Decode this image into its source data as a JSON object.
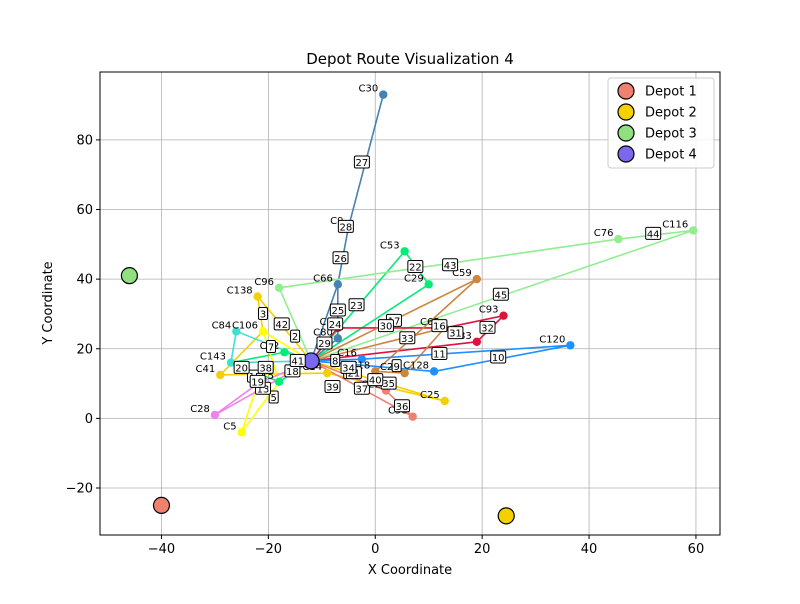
{
  "chart_data": {
    "type": "scatter",
    "title": "Depot Route Visualization 4",
    "xlabel": "X Coordinate",
    "ylabel": "Y Coordinate",
    "xlim": [
      -51.5,
      64.5
    ],
    "ylim": [
      -33.5,
      99.5
    ],
    "x_ticks": [
      -40,
      -20,
      0,
      20,
      40,
      60
    ],
    "y_ticks": [
      -20,
      0,
      20,
      40,
      60,
      80
    ],
    "grid": true,
    "legend_position": "top-right",
    "depots": [
      {
        "name": "Depot 1",
        "x": -40,
        "y": -25,
        "color": "#f08070"
      },
      {
        "name": "Depot 2",
        "x": 24.5,
        "y": -28,
        "color": "#f5d000"
      },
      {
        "name": "Depot 3",
        "x": -46,
        "y": 41,
        "color": "#90e080"
      },
      {
        "name": "Depot 4",
        "x": -12,
        "y": 16.5,
        "color": "#7b68ee"
      }
    ],
    "customers": [
      {
        "label": "C30",
        "x": 1.5,
        "y": 93,
        "color": "#4682b4"
      },
      {
        "label": "C9",
        "x": -5,
        "y": 55,
        "color": "#4682b4"
      },
      {
        "label": "C53",
        "x": 5.5,
        "y": 48,
        "color": "#00ee76"
      },
      {
        "label": "C66",
        "x": -7,
        "y": 38.5,
        "color": "#4682b4"
      },
      {
        "label": "C29",
        "x": 10,
        "y": 38.5,
        "color": "#00ee76"
      },
      {
        "label": "C59",
        "x": 19,
        "y": 40,
        "color": "#cd853f"
      },
      {
        "label": "C76",
        "x": 45.5,
        "y": 51.5,
        "color": "#90ee90"
      },
      {
        "label": "C116",
        "x": 59.5,
        "y": 54,
        "color": "#90ee90"
      },
      {
        "label": "C96",
        "x": -18,
        "y": 37.5,
        "color": "#90ee90"
      },
      {
        "label": "C138",
        "x": -22,
        "y": 35,
        "color": "#f5d000"
      },
      {
        "label": "C84",
        "x": -26,
        "y": 25,
        "color": "#40e0d0"
      },
      {
        "label": "C106",
        "x": -21,
        "y": 25,
        "color": "#ffff00"
      },
      {
        "label": "C93",
        "x": 24,
        "y": 29.5,
        "color": "#dc143c"
      },
      {
        "label": "C65",
        "x": 13,
        "y": 26,
        "color": "#cd853f"
      },
      {
        "label": "C83",
        "x": 19,
        "y": 22,
        "color": "#dc143c"
      },
      {
        "label": "C120",
        "x": 36.5,
        "y": 21,
        "color": "#1e90ff"
      },
      {
        "label": "C1",
        "x": -7,
        "y": 26,
        "color": "#dc143c"
      },
      {
        "label": "C80",
        "x": -7,
        "y": 23,
        "color": "#4682b4"
      },
      {
        "label": "C92",
        "x": -17,
        "y": 19,
        "color": "#00ee76"
      },
      {
        "label": "C143",
        "x": -27,
        "y": 16,
        "color": "#40e0d0"
      },
      {
        "label": "C41",
        "x": -29,
        "y": 12.5,
        "color": "#f5d000"
      },
      {
        "label": "C16",
        "x": -2.5,
        "y": 17,
        "color": "#1e90ff"
      },
      {
        "label": "C128",
        "x": 11,
        "y": 13.5,
        "color": "#1e90ff"
      },
      {
        "label": "C18",
        "x": 0,
        "y": 13.5,
        "color": "#cd853f"
      },
      {
        "label": "C24",
        "x": 5.5,
        "y": 13,
        "color": "#cd853f"
      },
      {
        "label": "C22",
        "x": 2,
        "y": 8,
        "color": "#f08070"
      },
      {
        "label": "C25",
        "x": 13,
        "y": 5,
        "color": "#f5d000"
      },
      {
        "label": "C58",
        "x": 7,
        "y": 0.5,
        "color": "#f08070"
      },
      {
        "label": "C14",
        "x": -9,
        "y": 13,
        "color": "#f5d000"
      },
      {
        "label": "C28",
        "x": -30,
        "y": 1,
        "color": "#ee82ee"
      },
      {
        "label": "C5",
        "x": -25,
        "y": -4,
        "color": "#ffff00"
      },
      {
        "label": "C15",
        "x": -18,
        "y": 10.5,
        "color": "#00ee76"
      }
    ],
    "routes": [
      {
        "color": "#4682b4",
        "points": [
          [
            -12,
            16.5
          ],
          [
            -7,
            23
          ],
          [
            -7,
            38.5
          ],
          [
            -5,
            55
          ],
          [
            1.5,
            93
          ],
          [
            -5,
            55
          ],
          [
            -7,
            38.5
          ],
          [
            -12,
            16.5
          ]
        ]
      },
      {
        "color": "#00ee76",
        "points": [
          [
            -12,
            16.5
          ],
          [
            -17,
            19
          ],
          [
            -27,
            16
          ],
          [
            -18,
            10.5
          ],
          [
            -12,
            16.5
          ]
        ]
      },
      {
        "color": "#00ee76",
        "points": [
          [
            -12,
            16.5
          ],
          [
            10,
            38.5
          ],
          [
            5.5,
            48
          ],
          [
            -12,
            16.5
          ]
        ]
      },
      {
        "color": "#90ee90",
        "points": [
          [
            -12,
            16.5
          ],
          [
            -18,
            37.5
          ],
          [
            45.5,
            51.5
          ],
          [
            59.5,
            54
          ],
          [
            -12,
            16.5
          ]
        ]
      },
      {
        "color": "#f5d000",
        "points": [
          [
            -12,
            16.5
          ],
          [
            -22,
            35
          ],
          [
            -21,
            25
          ],
          [
            -29,
            12.5
          ],
          [
            -9,
            13
          ],
          [
            13,
            5
          ],
          [
            -12,
            16.5
          ]
        ]
      },
      {
        "color": "#ffff00",
        "points": [
          [
            -12,
            16.5
          ],
          [
            -21,
            25
          ],
          [
            -18,
            10.5
          ],
          [
            -25,
            -4
          ],
          [
            -22,
            10
          ],
          [
            -12,
            16.5
          ]
        ]
      },
      {
        "color": "#40e0d0",
        "points": [
          [
            -12,
            16.5
          ],
          [
            -26,
            25
          ],
          [
            -27,
            16
          ],
          [
            -12,
            16.5
          ]
        ]
      },
      {
        "color": "#dc143c",
        "points": [
          [
            -12,
            16.5
          ],
          [
            -7,
            26
          ],
          [
            13,
            26
          ],
          [
            24,
            29.5
          ],
          [
            19,
            22
          ],
          [
            -12,
            16.5
          ]
        ]
      },
      {
        "color": "#cd853f",
        "points": [
          [
            -12,
            16.5
          ],
          [
            19,
            40
          ],
          [
            0,
            13.5
          ],
          [
            5.5,
            13
          ],
          [
            13,
            26
          ],
          [
            -12,
            16.5
          ]
        ]
      },
      {
        "color": "#1e90ff",
        "points": [
          [
            -12,
            16.5
          ],
          [
            -2.5,
            17
          ],
          [
            36.5,
            21
          ],
          [
            11,
            13.5
          ],
          [
            -12,
            16.5
          ]
        ]
      },
      {
        "color": "#f08070",
        "points": [
          [
            -12,
            16.5
          ],
          [
            2,
            8
          ],
          [
            7,
            0.5
          ],
          [
            -12,
            16.5
          ]
        ]
      },
      {
        "color": "#ee82ee",
        "points": [
          [
            -12,
            16.5
          ],
          [
            -30,
            1
          ],
          [
            -22,
            10
          ],
          [
            -12,
            16.5
          ]
        ]
      }
    ],
    "sequence_labels": [
      {
        "text": "2",
        "x": -15,
        "y": 23.5
      },
      {
        "text": "3",
        "x": -21,
        "y": 30
      },
      {
        "text": "5",
        "x": -19,
        "y": 6
      },
      {
        "text": "7",
        "x": -19.5,
        "y": 20.5
      },
      {
        "text": "8",
        "x": -7.5,
        "y": 16.5
      },
      {
        "text": "9",
        "x": 4,
        "y": 15
      },
      {
        "text": "10",
        "x": 23,
        "y": 17.5
      },
      {
        "text": "11",
        "x": 12,
        "y": 18.5
      },
      {
        "text": "12",
        "x": -4.5,
        "y": 13
      },
      {
        "text": "13",
        "x": -21,
        "y": 8.5
      },
      {
        "text": "15",
        "x": -22.5,
        "y": 12
      },
      {
        "text": "16",
        "x": 12,
        "y": 26.5
      },
      {
        "text": "17",
        "x": 3.5,
        "y": 28
      },
      {
        "text": "18",
        "x": -15.5,
        "y": 13.5
      },
      {
        "text": "19",
        "x": -22,
        "y": 10.5
      },
      {
        "text": "20",
        "x": -25,
        "y": 14.5
      },
      {
        "text": "21",
        "x": -4,
        "y": 13
      },
      {
        "text": "22",
        "x": 7.5,
        "y": 43.5
      },
      {
        "text": "23",
        "x": -3.5,
        "y": 32.5
      },
      {
        "text": "24",
        "x": -7.5,
        "y": 27
      },
      {
        "text": "25",
        "x": -7,
        "y": 31
      },
      {
        "text": "26",
        "x": -6.5,
        "y": 46
      },
      {
        "text": "27",
        "x": -2.5,
        "y": 73.5
      },
      {
        "text": "28",
        "x": -5.5,
        "y": 55
      },
      {
        "text": "29",
        "x": -9.5,
        "y": 21.5
      },
      {
        "text": "30",
        "x": 2,
        "y": 26.5
      },
      {
        "text": "31",
        "x": 15,
        "y": 24.5
      },
      {
        "text": "32",
        "x": 21,
        "y": 26
      },
      {
        "text": "33",
        "x": 6,
        "y": 23
      },
      {
        "text": "34",
        "x": -5,
        "y": 14.5
      },
      {
        "text": "35",
        "x": 2.5,
        "y": 10
      },
      {
        "text": "36",
        "x": 5,
        "y": 3.5
      },
      {
        "text": "37",
        "x": -2.5,
        "y": 8.5
      },
      {
        "text": "38",
        "x": -20.5,
        "y": 14.5
      },
      {
        "text": "39",
        "x": -8,
        "y": 9
      },
      {
        "text": "40",
        "x": 0,
        "y": 11
      },
      {
        "text": "41",
        "x": -14.5,
        "y": 16.5
      },
      {
        "text": "42",
        "x": -17.5,
        "y": 27
      },
      {
        "text": "43",
        "x": 14,
        "y": 44
      },
      {
        "text": "44",
        "x": 52,
        "y": 53
      },
      {
        "text": "45",
        "x": 23.5,
        "y": 35.5
      }
    ]
  }
}
